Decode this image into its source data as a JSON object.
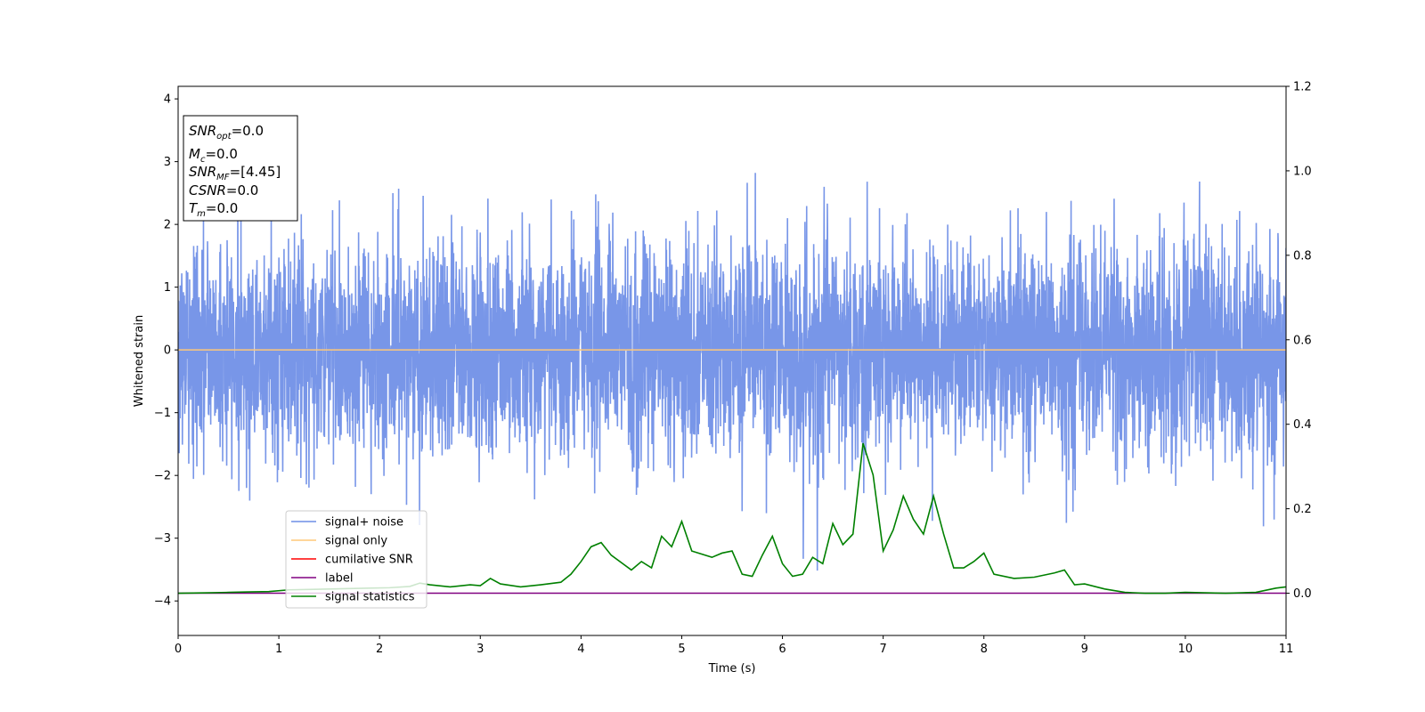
{
  "chart_data": {
    "type": "line",
    "title": "",
    "xlabel": "Time (s)",
    "ylabel": "Whitened strain",
    "xlim": [
      0,
      11
    ],
    "ylim": [
      -4.55,
      4.2
    ],
    "y2lim": [
      -0.1,
      1.2
    ],
    "x_ticks": [
      0,
      1,
      2,
      3,
      4,
      5,
      6,
      7,
      8,
      9,
      10,
      11
    ],
    "y_ticks": [
      -4,
      -3,
      -2,
      -1,
      0,
      1,
      2,
      3,
      4
    ],
    "y2_ticks": [
      0.0,
      0.2,
      0.4,
      0.6,
      0.8,
      1.0,
      1.2
    ],
    "grid": false,
    "legend_position": "lower-left",
    "annotation": {
      "snr_opt": {
        "name": "SNR",
        "sub": "opt",
        "value": "=0.0"
      },
      "mc": {
        "name": "M",
        "sub": "c",
        "value": "=0.0"
      },
      "snr_mf": {
        "name": "SNR",
        "sub": "MF",
        "value": "=[4.45]"
      },
      "csnr": {
        "name": "CSNR",
        "sub": "",
        "value": "=0.0"
      },
      "tm": {
        "name": "T",
        "sub": "m",
        "value": "=0.0"
      }
    },
    "series": [
      {
        "name": "signal+ noise",
        "color": "#6d8de6",
        "axis": "left",
        "kind": "noise",
        "x_range": [
          0,
          11
        ],
        "sigma": 0.85
      },
      {
        "name": "signal only",
        "color": "#ffc878",
        "axis": "left",
        "x": [
          0,
          11
        ],
        "values": [
          0,
          0
        ]
      },
      {
        "name": "cumilative SNR",
        "color": "#ff0000",
        "axis": "right",
        "x": [],
        "values": []
      },
      {
        "name": "label",
        "color": "#800080",
        "axis": "right",
        "x": [
          0,
          11
        ],
        "values": [
          0,
          0
        ]
      },
      {
        "name": "signal statistics",
        "color": "#008000",
        "axis": "right",
        "x": [
          0,
          0.3,
          0.5,
          0.7,
          0.9,
          1.1,
          1.3,
          1.5,
          1.7,
          1.9,
          2.1,
          2.3,
          2.4,
          2.5,
          2.7,
          2.9,
          3.0,
          3.1,
          3.2,
          3.4,
          3.6,
          3.8,
          3.9,
          4.0,
          4.1,
          4.2,
          4.3,
          4.5,
          4.6,
          4.7,
          4.8,
          4.9,
          5.0,
          5.1,
          5.3,
          5.4,
          5.5,
          5.6,
          5.7,
          5.8,
          5.9,
          6.0,
          6.1,
          6.2,
          6.3,
          6.4,
          6.5,
          6.6,
          6.7,
          6.8,
          6.9,
          7.0,
          7.1,
          7.2,
          7.3,
          7.4,
          7.5,
          7.6,
          7.7,
          7.8,
          7.9,
          8.0,
          8.1,
          8.3,
          8.5,
          8.7,
          8.8,
          8.9,
          9.0,
          9.2,
          9.4,
          9.6,
          9.8,
          10.0,
          10.4,
          10.7,
          10.9,
          11.0
        ],
        "values": [
          0.0,
          0.001,
          0.002,
          0.003,
          0.004,
          0.008,
          0.009,
          0.01,
          0.011,
          0.012,
          0.013,
          0.016,
          0.024,
          0.02,
          0.015,
          0.02,
          0.018,
          0.035,
          0.022,
          0.015,
          0.02,
          0.026,
          0.045,
          0.075,
          0.11,
          0.12,
          0.09,
          0.055,
          0.075,
          0.06,
          0.135,
          0.11,
          0.17,
          0.1,
          0.085,
          0.095,
          0.1,
          0.045,
          0.04,
          0.09,
          0.135,
          0.07,
          0.04,
          0.045,
          0.085,
          0.07,
          0.165,
          0.115,
          0.14,
          0.355,
          0.28,
          0.1,
          0.15,
          0.23,
          0.175,
          0.14,
          0.23,
          0.14,
          0.06,
          0.06,
          0.075,
          0.095,
          0.045,
          0.035,
          0.038,
          0.048,
          0.055,
          0.02,
          0.022,
          0.01,
          0.002,
          0.0,
          0.0,
          0.002,
          0.0,
          0.002,
          0.012,
          0.015
        ]
      }
    ]
  }
}
